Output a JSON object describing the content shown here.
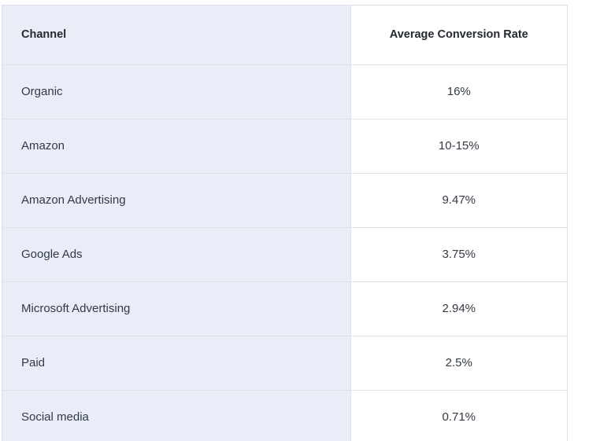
{
  "table": {
    "headers": {
      "channel": "Channel",
      "rate": "Average Conversion Rate"
    },
    "rows": [
      {
        "channel": "Organic",
        "rate": "16%"
      },
      {
        "channel": "Amazon",
        "rate": "10-15%"
      },
      {
        "channel": "Amazon Advertising",
        "rate": "9.47%"
      },
      {
        "channel": "Google Ads",
        "rate": "3.75%"
      },
      {
        "channel": "Microsoft Advertising",
        "rate": "2.94%"
      },
      {
        "channel": "Paid",
        "rate": "2.5%"
      },
      {
        "channel": "Social media",
        "rate": "0.71%"
      }
    ]
  },
  "colors": {
    "channel_column_bg": "#e8edf7",
    "rate_column_bg": "#ffffff",
    "border": "#dde1ea"
  }
}
